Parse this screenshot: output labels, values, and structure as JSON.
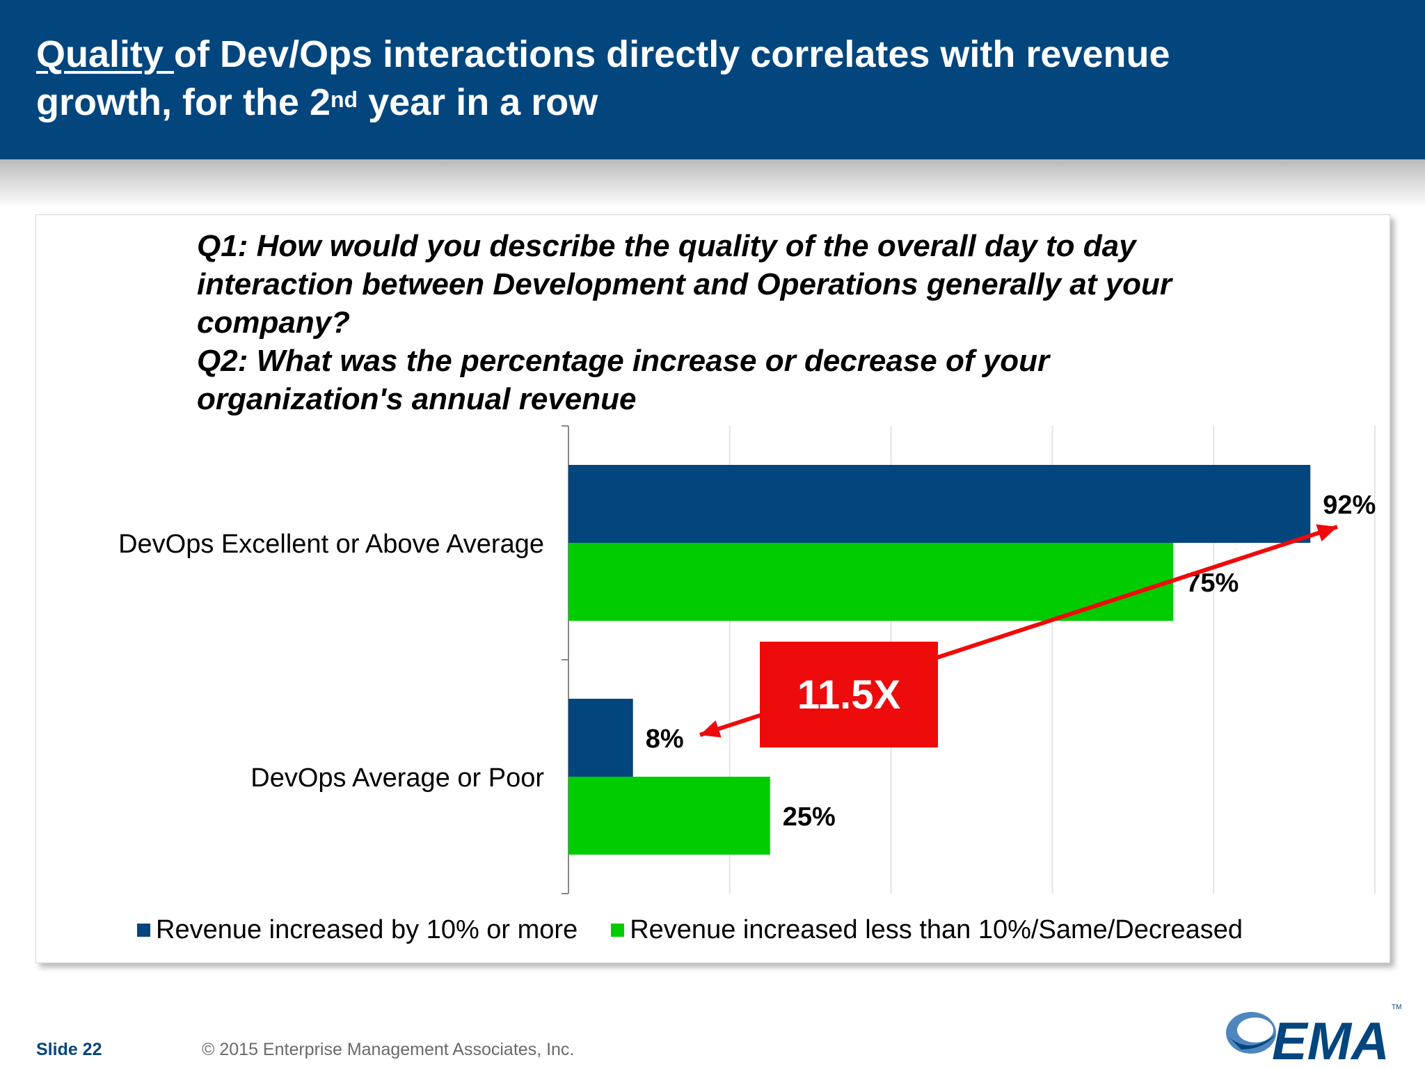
{
  "header": {
    "title_part1": "Quality ",
    "title_part2": "of Dev/Ops interactions directly correlates with revenue",
    "title_part3": "growth, for the 2",
    "title_sup": "nd",
    "title_part4": " year in a row"
  },
  "question": {
    "q1_line1": "Q1: How would you describe the quality of the overall day to day",
    "q1_line2": "interaction between Development and Operations generally at your",
    "q1_line3": "company?",
    "q2_line1": "Q2: What was the percentage increase or decrease of your",
    "q2_line2": "organization's annual revenue"
  },
  "chart_data": {
    "type": "bar",
    "orientation": "horizontal",
    "categories": [
      "DevOps Excellent or Above Average",
      "DevOps Average or Poor"
    ],
    "series": [
      {
        "name": "Revenue increased by 10% or more",
        "values": [
          92,
          8
        ],
        "labels": [
          "92%",
          "8%"
        ],
        "color": "#03467e"
      },
      {
        "name": "Revenue increased less than 10%/Same/Decreased",
        "values": [
          75,
          25
        ],
        "labels": [
          "75%",
          "25%"
        ],
        "color": "#00cc00"
      }
    ],
    "xlim": [
      0,
      100
    ],
    "grid": true,
    "legend": "bottom",
    "annotation": {
      "text": "11.5X",
      "color": "#ee0b0b"
    }
  },
  "footer": {
    "slide": "Slide 22",
    "copyright": "© 2015 Enterprise Management Associates, Inc."
  },
  "logo": {
    "text": "EMA",
    "tm": "TM",
    "color": "#03467e"
  }
}
